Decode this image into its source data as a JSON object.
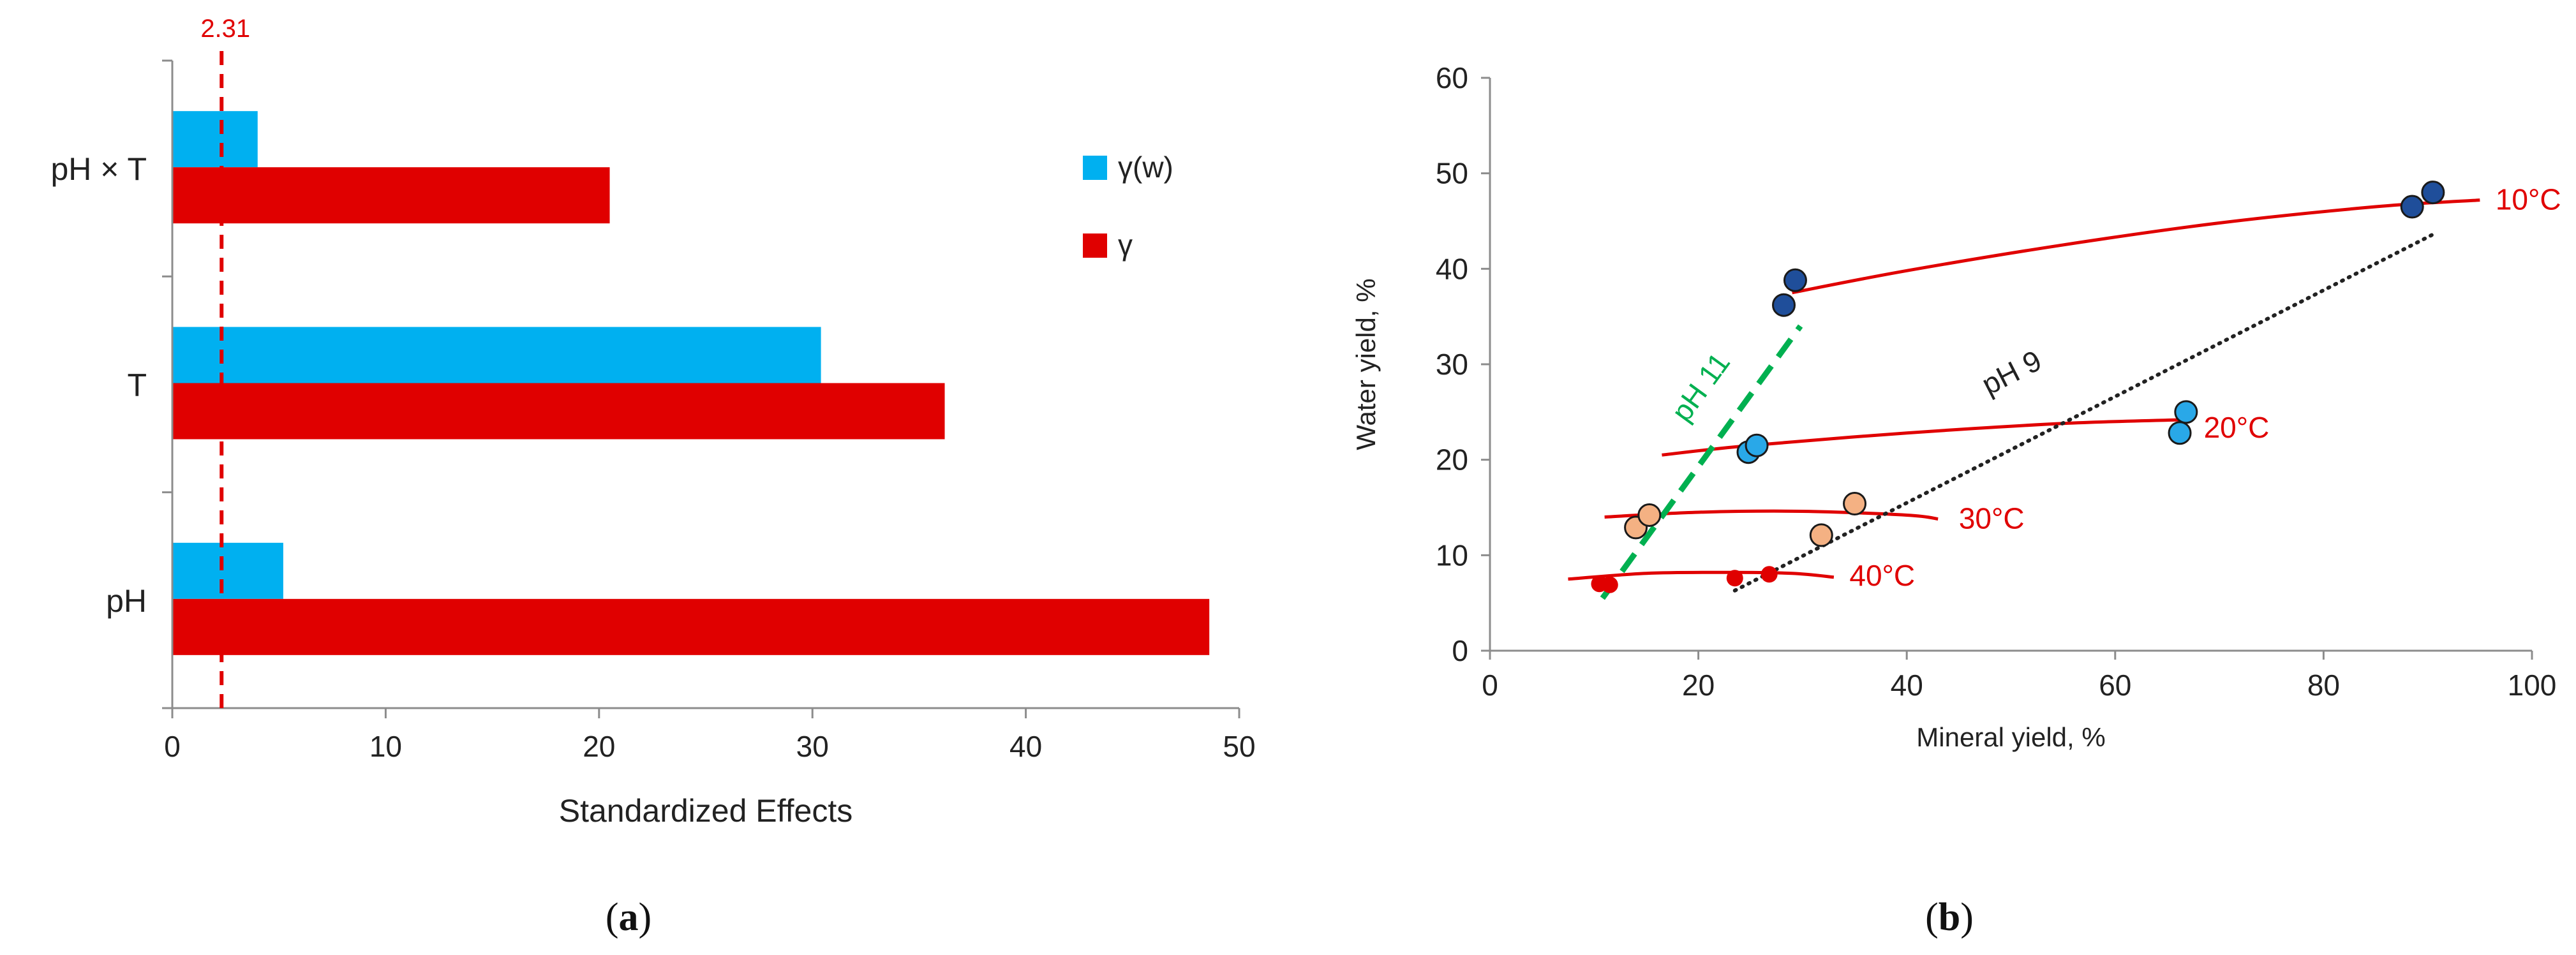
{
  "colors": {
    "gamma_w": "#00b0f0",
    "gamma": "#e00000",
    "threshold": "#e00000",
    "temp_curve": "#e00000",
    "ph11_line": "#00b050",
    "ph9_line": "#222222",
    "dot_10C": "#1f4e9a",
    "dot_20C": "#29a8e8",
    "dot_30C": "#f4b183",
    "dot_40C": "#e00000"
  },
  "panel_labels": {
    "a": {
      "open": "(",
      "letter": "a",
      "close": ")"
    },
    "b": {
      "open": "(",
      "letter": "b",
      "close": ")"
    }
  },
  "chart_data": [
    {
      "id": "a",
      "type": "bar",
      "orientation": "horizontal",
      "categories": [
        "pH × T",
        "T",
        "pH"
      ],
      "series": [
        {
          "name": "γ(w)",
          "values": [
            4.0,
            30.4,
            5.2
          ]
        },
        {
          "name": "γ",
          "values": [
            20.5,
            36.2,
            48.6
          ]
        }
      ],
      "xlabel": "Standardized Effects",
      "xlim": [
        0,
        50
      ],
      "xticks": [
        0,
        10,
        20,
        30,
        40,
        50
      ],
      "threshold": {
        "value": 2.31,
        "label": "2.31"
      },
      "legend": {
        "placement": "right",
        "entries": [
          "γ(w)",
          "γ"
        ]
      },
      "grid": false
    },
    {
      "id": "b",
      "type": "scatter",
      "xlabel": "Mineral yield, %",
      "ylabel": "Water yield, %",
      "xlim": [
        0,
        100
      ],
      "ylim": [
        0,
        60
      ],
      "xticks": [
        0,
        20,
        40,
        60,
        80,
        100
      ],
      "yticks": [
        0,
        10,
        20,
        30,
        40,
        50,
        60
      ],
      "grid": false,
      "series": [
        {
          "name": "10°C",
          "points": [
            [
              28.2,
              36.2
            ],
            [
              29.3,
              38.8
            ],
            [
              88.5,
              46.5
            ],
            [
              90.5,
              48.0
            ]
          ]
        },
        {
          "name": "20°C",
          "points": [
            [
              24.8,
              20.8
            ],
            [
              25.6,
              21.5
            ],
            [
              66.2,
              22.8
            ],
            [
              66.8,
              25.0
            ]
          ]
        },
        {
          "name": "30°C",
          "points": [
            [
              14.0,
              12.9
            ],
            [
              15.3,
              14.2
            ],
            [
              31.8,
              12.1
            ],
            [
              35.0,
              15.4
            ]
          ]
        },
        {
          "name": "40°C",
          "points": [
            [
              10.5,
              7.0
            ],
            [
              11.5,
              6.9
            ],
            [
              23.5,
              7.6
            ],
            [
              26.8,
              8.0
            ]
          ]
        }
      ],
      "temperature_curves": [
        {
          "label": "10°C",
          "points": [
            [
              29,
              37.5
            ],
            [
              40,
              39.8
            ],
            [
              55,
              42.5
            ],
            [
              70,
              44.8
            ],
            [
              85,
              46.5
            ],
            [
              95,
              47.2
            ]
          ]
        },
        {
          "label": "20°C",
          "points": [
            [
              16.5,
              20.5
            ],
            [
              25,
              21.5
            ],
            [
              40,
              22.8
            ],
            [
              55,
              23.8
            ],
            [
              67,
              24.2
            ]
          ]
        },
        {
          "label": "30°C",
          "points": [
            [
              11,
              14.0
            ],
            [
              20,
              14.5
            ],
            [
              30,
              14.6
            ],
            [
              40,
              14.2
            ],
            [
              43,
              13.8
            ]
          ]
        },
        {
          "label": "40°C",
          "points": [
            [
              7.5,
              7.5
            ],
            [
              15,
              8.1
            ],
            [
              23,
              8.2
            ],
            [
              29,
              8.1
            ],
            [
              33,
              7.7
            ]
          ]
        }
      ],
      "trend_lines": [
        {
          "label": "pH 11",
          "style": "dashed",
          "from": [
            10.8,
            5.5
          ],
          "to": [
            29.8,
            34.0
          ]
        },
        {
          "label": "pH 9",
          "style": "dotted",
          "from": [
            23.5,
            6.3
          ],
          "to": [
            90.5,
            43.6
          ]
        }
      ]
    }
  ]
}
